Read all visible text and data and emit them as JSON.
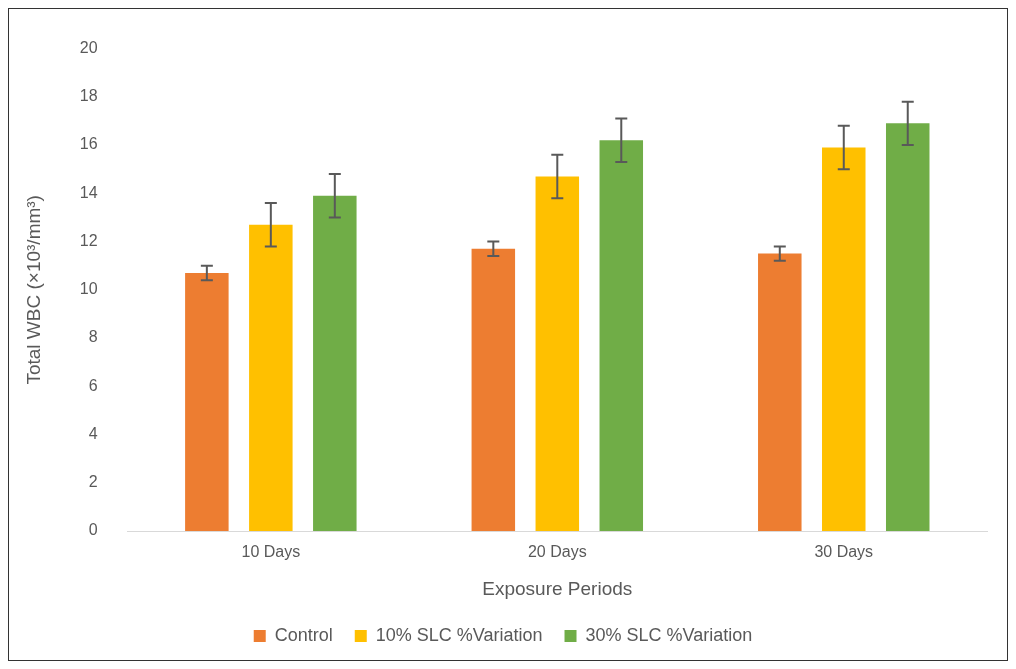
{
  "chart_data": {
    "type": "bar",
    "xlabel": "Exposure Periods",
    "ylabel": "Total WBC (×10³/mm³)",
    "categories": [
      "10 Days",
      "20 Days",
      "30 Days"
    ],
    "series": [
      {
        "name": "Control",
        "color": "#ed7d31",
        "values": [
          10.7,
          11.7,
          11.5
        ],
        "errors": [
          0.3,
          0.3,
          0.3
        ]
      },
      {
        "name": "10% SLC %Variation",
        "color": "#ffc000",
        "values": [
          12.7,
          14.7,
          15.9
        ],
        "errors": [
          0.9,
          0.9,
          0.9
        ]
      },
      {
        "name": "30% SLC %Variation",
        "color": "#70ad47",
        "values": [
          13.9,
          16.2,
          16.9
        ],
        "errors": [
          0.9,
          0.9,
          0.9
        ]
      }
    ],
    "ylim": [
      0,
      20
    ],
    "yticks": [
      0,
      2,
      4,
      6,
      8,
      10,
      12,
      14,
      16,
      18,
      20
    ],
    "grid": false,
    "legend": "bottom"
  }
}
